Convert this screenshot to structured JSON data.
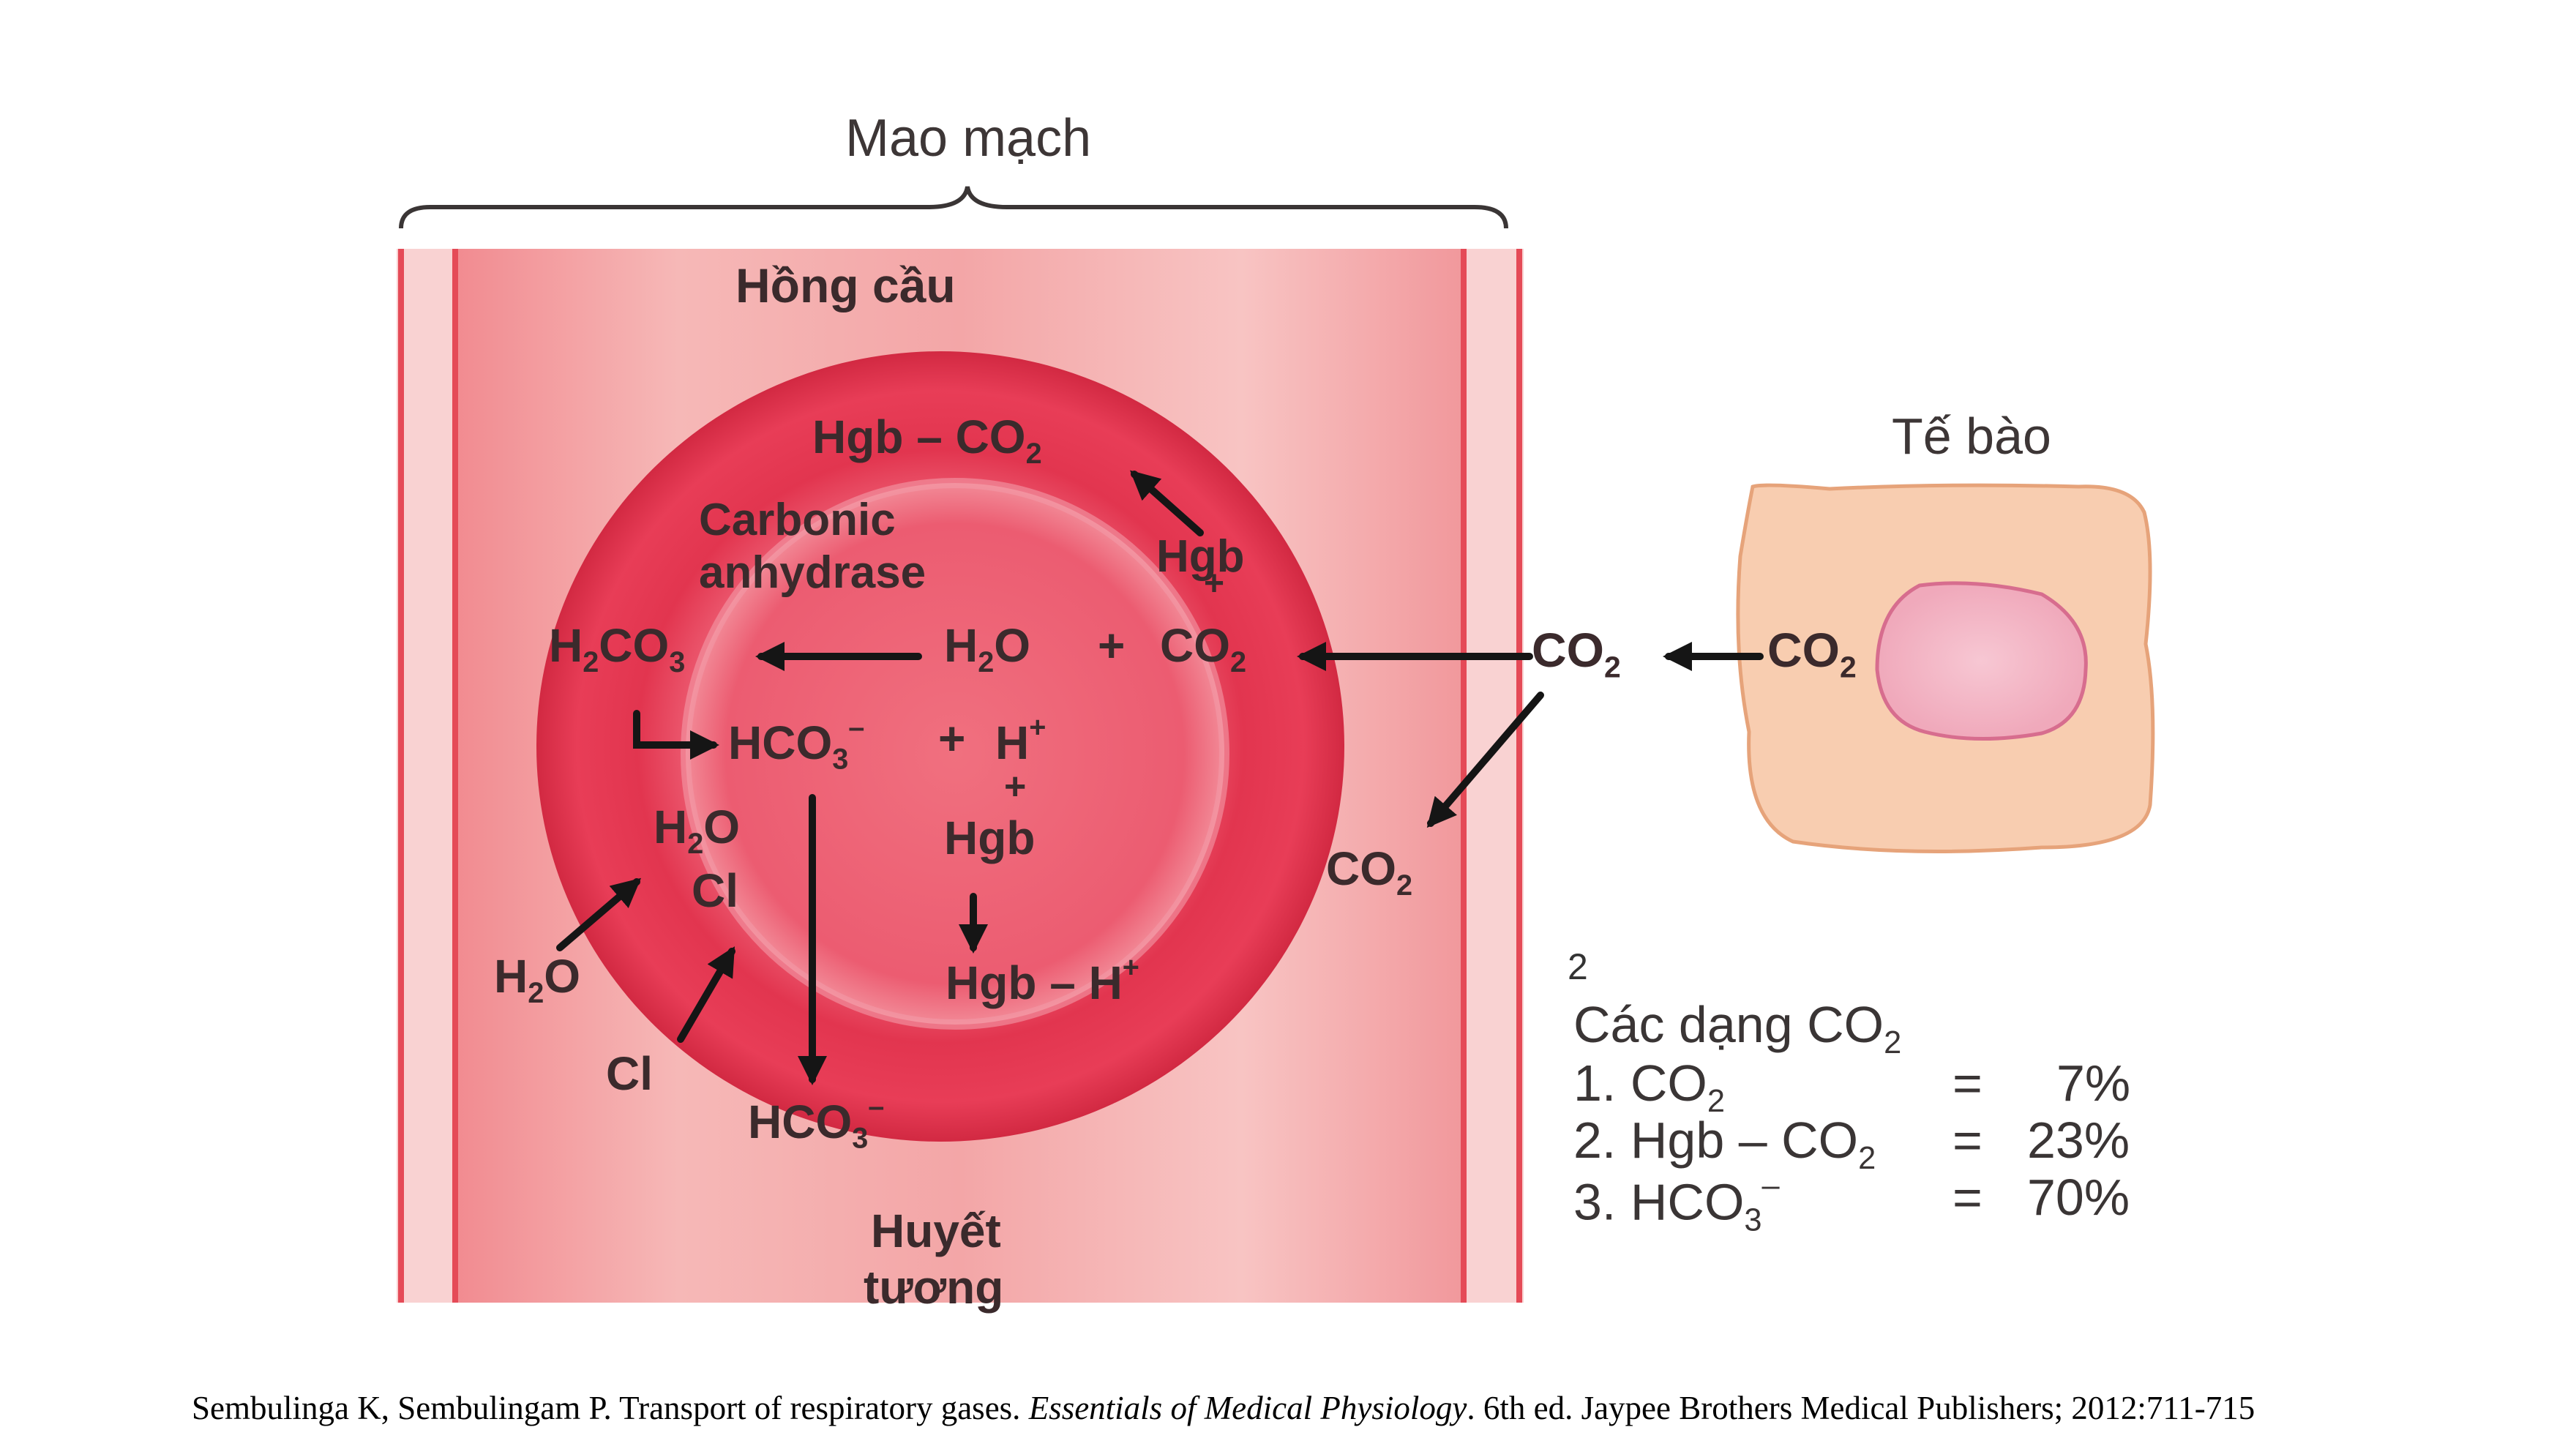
{
  "labels": {
    "capillary": "Mao mạch",
    "red_cell": "Hồng cầu",
    "tissue_cell": "Tế bào",
    "plasma_line1": "Huyết",
    "plasma_line2": "tương",
    "enzyme_line1": "Carbonic",
    "enzyme_line2": "anhydrase"
  },
  "formulas": {
    "hgb_co2": "Hgb – CO",
    "hgb": "Hgb",
    "h2co3_h": "H",
    "h2co3_co": "CO",
    "h2o_h": "H",
    "h2o_o": "O",
    "plus": "+",
    "co2": "CO",
    "sub2": "2",
    "sub3": "3",
    "hco3": "HCO",
    "minus": "–",
    "h_plus_h": "H",
    "sup_plus": "+",
    "cl": "Cl",
    "hgb_h": "Hgb – H"
  },
  "note_number": "2",
  "co2_forms": {
    "title": "Các dạng CO",
    "title_sub": "2",
    "items": [
      {
        "index": "1.",
        "name": "CO",
        "name_sub": "2",
        "eq": "=",
        "value": "7%"
      },
      {
        "index": "2.",
        "name": "Hgb – CO",
        "name_sub": "2",
        "eq": "=",
        "value": "23%"
      },
      {
        "index": "3.",
        "name": "HCO",
        "name_sub": "3",
        "name_sup": "–",
        "eq": "=",
        "value": "70%"
      }
    ]
  },
  "citation": {
    "authors": "Sembulinga K, Sembulingam P. Transport of respiratory gases.",
    "book": "Essentials of Medical Physiology",
    "rest": ". 6th ed. Jaypee Brothers Medical Publishers; 2012:711-715"
  },
  "colors": {
    "cell_red": "#e33a55",
    "vessel_pink": "#f2a3a4",
    "tissue_peach": "#f8cdb0",
    "nucleus_pink": "#f3b6c6",
    "arrow": "#151515"
  }
}
